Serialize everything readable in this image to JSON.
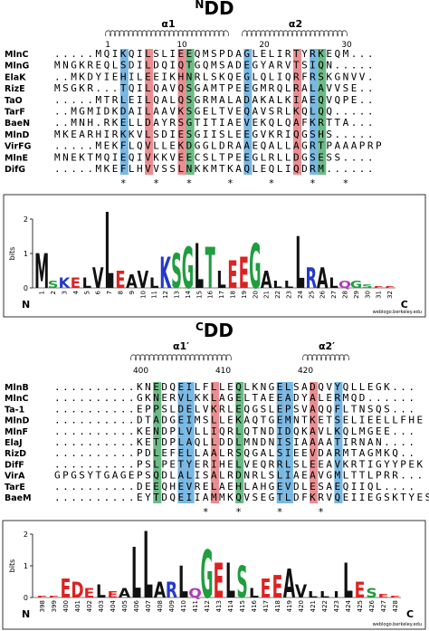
{
  "ndd": {
    "title": {
      "sup": "N",
      "main": "DD"
    },
    "helices": [
      "α1",
      "α2"
    ],
    "numbers": [
      1,
      10,
      20,
      30
    ],
    "names": [
      "MlnC",
      "MlnG",
      "ElaK",
      "RizE",
      "TaO",
      "TarF",
      "BaeN",
      "MlnD",
      "VirFG",
      "MlnE",
      "DifG"
    ],
    "sequences": [
      ".....MQIKQILSLIEEQMSPDAGLELIRTYRKEQM...",
      "MNGKREQLSDILDQIQTGQMSADEGYARVTSIQN.....",
      "..MKDYIEHILEEIKHNRLSKQEGLQLIQRFRSKGNVV.",
      "MSGKR...TQILQAVQSGAMTPEEGMRQLRALAVVSE..",
      ".....MTRLEILQALQSGRMALADAKALKIAEQVQPE..",
      "..MGMIDKDAILAAVKSGELTVEQAVSRLKQLQQ.....",
      "..MNH.RKELLDAYRSGTITIAEVEKQLQAFKRTTA...",
      "MKEARHIRKKVLSDIESGIISLEEGVKRIQGSHS.....",
      ".....MEKFLQVLLEKDGGLDRAAEQALLAGRTPAAAPRP",
      "MNEKTMQIEQIVKKVEECSLTPEEGLRLLDGSESS....",
      ".....MKEFLHVVSSLNKKMTKAQLEQLIQDRM......"
    ],
    "conservation": "        *   *   *    *    *    *   *",
    "logo": {
      "ylabel": "bits",
      "yticks": [
        0,
        1,
        2
      ],
      "positions": [
        1,
        2,
        3,
        4,
        5,
        6,
        7,
        8,
        9,
        10,
        11,
        12,
        13,
        14,
        15,
        16,
        17,
        18,
        19,
        20,
        21,
        22,
        23,
        24,
        25,
        26,
        27,
        28,
        29,
        30,
        31,
        32
      ],
      "letters": [
        "M",
        "S",
        "K",
        "E",
        "L",
        "V",
        "L",
        "E",
        "A",
        "V",
        "L",
        "K",
        "S",
        "G",
        "L",
        "T",
        "L",
        "E",
        "E",
        "G",
        "A",
        "L",
        "L",
        "L",
        "R",
        "A",
        "L",
        "Q",
        "G",
        "S",
        "E",
        "E"
      ],
      "heights": [
        1.0,
        0.2,
        0.3,
        0.3,
        0.3,
        0.6,
        2.2,
        0.5,
        0.4,
        0.5,
        0.3,
        0.9,
        1.0,
        1.2,
        1.3,
        1.2,
        0.5,
        0.8,
        0.9,
        1.3,
        0.5,
        0.2,
        0.2,
        1.5,
        0.6,
        0.6,
        0.3,
        0.2,
        0.2,
        0.1,
        0.05,
        0.05
      ],
      "n": "N",
      "c": "C",
      "credit": "weblogo.berkeley.edu"
    }
  },
  "cdd": {
    "title": {
      "sup": "C",
      "main": "DD"
    },
    "helices": [
      "α1′",
      "α2′"
    ],
    "numbers": [
      400,
      410,
      420
    ],
    "names": [
      "MlnB",
      "MlnC",
      "Ta-1",
      "MlnD",
      "MlnF",
      "ElaJ",
      "RizD",
      "DifF",
      "VirA",
      "TarE",
      "BaeM"
    ],
    "sequences": [
      "..........KNEDQEILFLLEQLKNGELSADQVYQLLEGK...",
      "..........GKNERVLKKLAGELTAEEADYALERMQD......",
      "..........EPPSLDELVKRLEQGSLEPSVAQQFLTNSQS...",
      "..........DTADGEIMSLLEKAQTGEMNTKETSELIEELLFHE",
      "..........KENDPLVLLIQRLQTNDIDQKAVLKQLMGEE...",
      "..........KETDPLAQLLDDLMNDNISIAAAATIRNAN....",
      "..........PDLEFELLAALRSQGALSIEEVDARMTAGMKQ..",
      "..........PSLPETYERIHELVEQRRLSLEEAVKRTIGYYPEK",
      "GPGSYTGAGEPSQDLALISALRDNRLSLIAEAVGMLTTLPRR...",
      "..........DEEQHEVRELAEHLAHGEVDLESAEQIIQL....",
      "..........EYTDQEIIAMMKQVSEGTLDFKRVQEIIEGSKTYES"
    ],
    "conservation": "                  *   *    *    *",
    "logo": {
      "ylabel": "bits",
      "yticks": [
        0,
        1,
        2
      ],
      "positions": [
        398,
        399,
        400,
        401,
        402,
        403,
        404,
        405,
        406,
        407,
        408,
        409,
        410,
        411,
        412,
        413,
        414,
        415,
        416,
        417,
        418,
        419,
        420,
        421,
        422,
        423,
        424,
        425,
        426,
        427,
        428
      ],
      "letters": [
        "E",
        "E",
        "E",
        "D",
        "E",
        "L",
        "E",
        "A",
        "L",
        "L",
        "A",
        "R",
        "L",
        "Q",
        "G",
        "E",
        "L",
        "S",
        "L",
        "E",
        "E",
        "A",
        "V",
        "L",
        "L",
        "I",
        "L",
        "E",
        "S",
        "E",
        "E"
      ],
      "heights": [
        0.05,
        0.05,
        0.6,
        0.5,
        0.3,
        0.4,
        0.2,
        0.3,
        1.6,
        2.1,
        0.5,
        0.5,
        1.0,
        0.3,
        1.5,
        1.1,
        1.1,
        1.0,
        0.3,
        0.6,
        0.7,
        0.9,
        0.4,
        0.2,
        0.2,
        0.2,
        1.1,
        0.5,
        0.3,
        0.1,
        0.05
      ],
      "n": "N",
      "c": "C",
      "credit": "weblogo.berkeley.edu"
    }
  }
}
